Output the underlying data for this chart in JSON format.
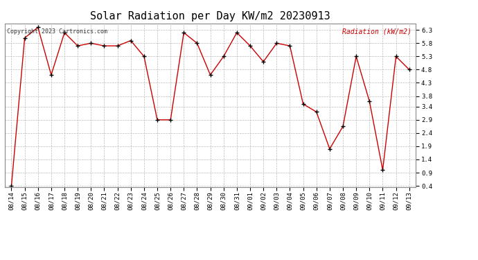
{
  "title": "Solar Radiation per Day KW/m2 20230913",
  "copyright_text": "Copyright 2023 Cartronics.com",
  "legend_label": "Radiation (kW/m2)",
  "dates": [
    "08/14",
    "08/15",
    "08/16",
    "08/17",
    "08/18",
    "08/19",
    "08/20",
    "08/21",
    "08/22",
    "08/23",
    "08/24",
    "08/25",
    "08/26",
    "08/27",
    "08/28",
    "08/29",
    "08/30",
    "08/31",
    "09/01",
    "09/02",
    "09/03",
    "09/04",
    "09/05",
    "09/06",
    "09/07",
    "09/08",
    "09/09",
    "09/10",
    "09/11",
    "09/12",
    "09/13"
  ],
  "values": [
    0.4,
    6.0,
    6.4,
    4.6,
    6.2,
    5.7,
    5.8,
    5.7,
    5.7,
    5.9,
    5.3,
    2.9,
    2.9,
    6.2,
    5.8,
    4.6,
    5.3,
    6.2,
    5.7,
    5.1,
    5.8,
    5.7,
    3.5,
    3.2,
    1.8,
    2.65,
    5.3,
    3.6,
    1.0,
    5.3,
    4.8
  ],
  "line_color": "#cc0000",
  "marker_color": "#000000",
  "grid_color": "#bbbbbb",
  "background_color": "#ffffff",
  "title_fontsize": 11,
  "tick_fontsize": 6.5,
  "copyright_fontsize": 6,
  "legend_fontsize": 7,
  "ylim_min": 0.35,
  "ylim_max": 6.55,
  "yticks": [
    0.4,
    0.9,
    1.4,
    1.9,
    2.4,
    2.9,
    3.4,
    3.8,
    4.3,
    4.8,
    5.3,
    5.8,
    6.3
  ]
}
